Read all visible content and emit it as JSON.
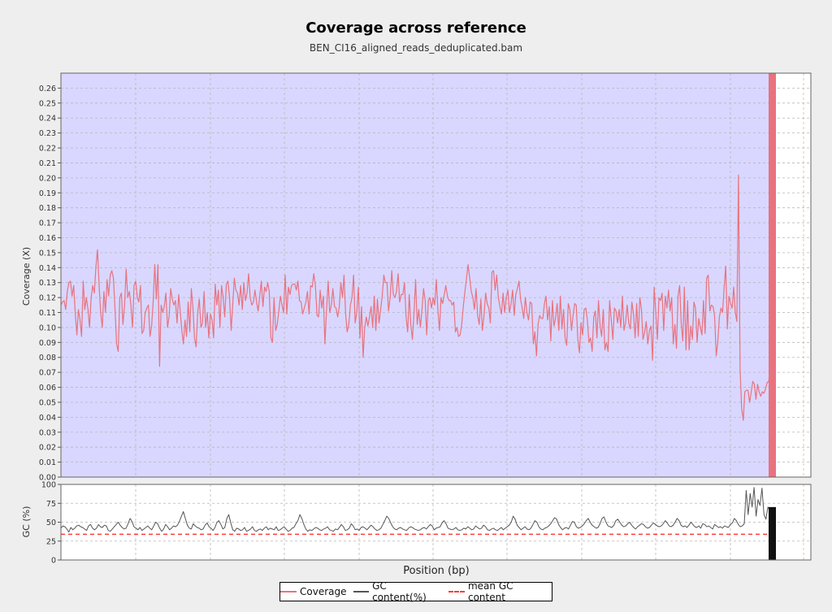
{
  "title": "Coverage across reference",
  "subtitle": "BEN_CI16_aligned_reads_deduplicated.bam",
  "colors": {
    "background": "#eeeeee",
    "plot_bg": "#d9d7ff",
    "coverage_line": "#e8737f",
    "gc_line": "#555555",
    "mean_gc": "#ff3b3b",
    "grid": "#b7b7b7",
    "grid_vertical": "#e8b27f"
  },
  "chart_data": [
    {
      "type": "line",
      "title": "Coverage across reference",
      "xlabel": "",
      "ylabel": "Coverage (X)",
      "ylim": [
        0,
        0.27
      ],
      "yticks": [
        "0.00",
        "0.01",
        "0.02",
        "0.03",
        "0.04",
        "0.05",
        "0.06",
        "0.07",
        "0.08",
        "0.09",
        "0.10",
        "0.11",
        "0.12",
        "0.13",
        "0.14",
        "0.15",
        "0.16",
        "0.17",
        "0.18",
        "0.19",
        "0.20",
        "0.21",
        "0.22",
        "0.23",
        "0.24",
        "0.25",
        "0.26"
      ],
      "grid": true,
      "series": [
        {
          "name": "Coverage",
          "color": "#e8737f",
          "values": [
            0.115,
            0.117,
            0.118,
            0.112,
            0.124,
            0.13,
            0.131,
            0.121,
            0.128,
            0.11,
            0.095,
            0.112,
            0.105,
            0.094,
            0.131,
            0.112,
            0.12,
            0.112,
            0.1,
            0.12,
            0.128,
            0.123,
            0.141,
            0.152,
            0.128,
            0.11,
            0.1,
            0.124,
            0.11,
            0.132,
            0.121,
            0.135,
            0.138,
            0.133,
            0.112,
            0.089,
            0.084,
            0.12,
            0.123,
            0.102,
            0.115,
            0.139,
            0.12,
            0.124,
            0.115,
            0.1,
            0.128,
            0.131,
            0.12,
            0.117,
            0.128,
            0.096,
            0.098,
            0.11,
            0.113,
            0.115,
            0.094,
            0.101,
            0.117,
            0.142,
            0.119,
            0.142,
            0.074,
            0.115,
            0.11,
            0.114,
            0.123,
            0.1,
            0.107,
            0.126,
            0.119,
            0.115,
            0.118,
            0.103,
            0.122,
            0.111,
            0.098,
            0.089,
            0.105,
            0.094,
            0.117,
            0.097,
            0.126,
            0.113,
            0.093,
            0.087,
            0.11,
            0.119,
            0.1,
            0.103,
            0.124,
            0.1,
            0.11,
            0.093,
            0.109,
            0.105,
            0.093,
            0.129,
            0.115,
            0.125,
            0.1,
            0.128,
            0.12,
            0.107,
            0.129,
            0.131,
            0.12,
            0.098,
            0.115,
            0.133,
            0.125,
            0.123,
            0.115,
            0.128,
            0.112,
            0.13,
            0.118,
            0.123,
            0.136,
            0.12,
            0.115,
            0.117,
            0.125,
            0.117,
            0.111,
            0.121,
            0.131,
            0.114,
            0.127,
            0.124,
            0.13,
            0.124,
            0.093,
            0.09,
            0.12,
            0.098,
            0.102,
            0.111,
            0.121,
            0.115,
            0.11,
            0.135,
            0.109,
            0.127,
            0.122,
            0.128,
            0.129,
            0.129,
            0.125,
            0.131,
            0.118,
            0.117,
            0.109,
            0.113,
            0.117,
            0.124,
            0.109,
            0.128,
            0.127,
            0.136,
            0.128,
            0.108,
            0.107,
            0.125,
            0.113,
            0.121,
            0.089,
            0.112,
            0.131,
            0.11,
            0.115,
            0.126,
            0.114,
            0.113,
            0.107,
            0.114,
            0.13,
            0.12,
            0.135,
            0.109,
            0.097,
            0.102,
            0.115,
            0.12,
            0.135,
            0.103,
            0.11,
            0.127,
            0.093,
            0.114,
            0.08,
            0.1,
            0.107,
            0.101,
            0.107,
            0.114,
            0.1,
            0.121,
            0.098,
            0.119,
            0.103,
            0.112,
            0.121,
            0.135,
            0.13,
            0.13,
            0.111,
            0.12,
            0.138,
            0.122,
            0.12,
            0.124,
            0.136,
            0.117,
            0.122,
            0.122,
            0.13,
            0.107,
            0.097,
            0.122,
            0.102,
            0.092,
            0.11,
            0.132,
            0.102,
            0.112,
            0.1,
            0.112,
            0.126,
            0.118,
            0.095,
            0.118,
            0.12,
            0.113,
            0.12,
            0.115,
            0.132,
            0.112,
            0.098,
            0.12,
            0.116,
            0.122,
            0.128,
            0.121,
            0.118,
            0.118,
            0.115,
            0.117,
            0.097,
            0.1,
            0.094,
            0.095,
            0.102,
            0.114,
            0.124,
            0.133,
            0.142,
            0.133,
            0.124,
            0.12,
            0.112,
            0.126,
            0.108,
            0.102,
            0.119,
            0.098,
            0.108,
            0.123,
            0.116,
            0.113,
            0.103,
            0.137,
            0.138,
            0.125,
            0.135,
            0.12,
            0.114,
            0.109,
            0.123,
            0.11,
            0.12,
            0.125,
            0.11,
            0.116,
            0.125,
            0.108,
            0.122,
            0.126,
            0.131,
            0.119,
            0.113,
            0.106,
            0.12,
            0.11,
            0.105,
            0.117,
            0.116,
            0.089,
            0.097,
            0.081,
            0.102,
            0.108,
            0.106,
            0.106,
            0.116,
            0.121,
            0.105,
            0.114,
            0.091,
            0.118,
            0.101,
            0.106,
            0.116,
            0.098,
            0.121,
            0.099,
            0.112,
            0.093,
            0.088,
            0.116,
            0.112,
            0.098,
            0.108,
            0.116,
            0.115,
            0.092,
            0.083,
            0.103,
            0.095,
            0.112,
            0.113,
            0.105,
            0.09,
            0.093,
            0.084,
            0.107,
            0.111,
            0.093,
            0.118,
            0.101,
            0.094,
            0.112,
            0.085,
            0.09,
            0.084,
            0.118,
            0.105,
            0.092,
            0.113,
            0.111,
            0.103,
            0.112,
            0.1,
            0.121,
            0.098,
            0.103,
            0.115,
            0.103,
            0.099,
            0.117,
            0.109,
            0.093,
            0.116,
            0.094,
            0.12,
            0.112,
            0.092,
            0.097,
            0.104,
            0.089,
            0.098,
            0.101,
            0.078,
            0.127,
            0.11,
            0.092,
            0.12,
            0.118,
            0.123,
            0.098,
            0.121,
            0.113,
            0.125,
            0.111,
            0.12,
            0.089,
            0.102,
            0.086,
            0.121,
            0.128,
            0.103,
            0.091,
            0.127,
            0.085,
            0.118,
            0.085,
            0.101,
            0.092,
            0.117,
            0.113,
            0.09,
            0.106,
            0.1,
            0.095,
            0.118,
            0.096,
            0.133,
            0.135,
            0.111,
            0.115,
            0.114,
            0.108,
            0.081,
            0.09,
            0.107,
            0.113,
            0.11,
            0.127,
            0.141,
            0.099,
            0.121,
            0.116,
            0.113,
            0.127,
            0.11,
            0.104,
            0.202,
            0.072,
            0.046,
            0.038,
            0.057,
            0.058,
            0.058,
            0.05,
            0.057,
            0.064,
            0.062,
            0.052,
            0.062,
            0.057,
            0.054,
            0.057,
            0.056,
            0.059,
            0.063,
            0.064,
            0.075,
            0.088
          ]
        }
      ]
    },
    {
      "type": "line",
      "xlabel": "Position (bp)",
      "ylabel": "GC (%)",
      "ylim": [
        0,
        100
      ],
      "yticks": [
        "0",
        "25",
        "50",
        "75",
        "100"
      ],
      "grid": true,
      "mean_gc": 34,
      "series": [
        {
          "name": "GC content(%)",
          "color": "#555555",
          "values": [
            42,
            45,
            44,
            41,
            37,
            43,
            40,
            42,
            45,
            46,
            44,
            43,
            41,
            39,
            45,
            47,
            42,
            40,
            42,
            47,
            44,
            43,
            46,
            45,
            39,
            38,
            41,
            44,
            47,
            50,
            46,
            43,
            41,
            42,
            48,
            55,
            51,
            44,
            42,
            40,
            43,
            39,
            41,
            43,
            45,
            42,
            40,
            45,
            50,
            48,
            42,
            38,
            41,
            47,
            44,
            40,
            42,
            45,
            44,
            46,
            51,
            58,
            64,
            55,
            46,
            42,
            41,
            48,
            45,
            43,
            42,
            40,
            41,
            46,
            49,
            44,
            42,
            39,
            43,
            50,
            52,
            47,
            41,
            43,
            55,
            60,
            49,
            40,
            38,
            42,
            41,
            39,
            40,
            43,
            38,
            39,
            41,
            44,
            39,
            38,
            40,
            41,
            39,
            42,
            44,
            40,
            42,
            41,
            40,
            44,
            39,
            40,
            42,
            44,
            41,
            38,
            39,
            42,
            43,
            48,
            52,
            60,
            55,
            47,
            41,
            38,
            40,
            39,
            41,
            43,
            42,
            40,
            39,
            41,
            42,
            44,
            40,
            39,
            38,
            41,
            40,
            43,
            47,
            44,
            39,
            40,
            42,
            48,
            45,
            40,
            41,
            39,
            43,
            44,
            42,
            40,
            43,
            46,
            44,
            41,
            39,
            40,
            42,
            47,
            52,
            58,
            55,
            49,
            44,
            41,
            40,
            42,
            43,
            41,
            40,
            39,
            42,
            44,
            43,
            41,
            40,
            39,
            40,
            42,
            43,
            41,
            44,
            47,
            45,
            40,
            42,
            43,
            44,
            49,
            52,
            48,
            42,
            41,
            40,
            41,
            43,
            40,
            39,
            40,
            42,
            41,
            44,
            42,
            40,
            41,
            45,
            43,
            41,
            42,
            46,
            44,
            40,
            39,
            41,
            42,
            40,
            39,
            41,
            43,
            40,
            42,
            44,
            46,
            50,
            58,
            54,
            46,
            43,
            40,
            42,
            44,
            41,
            40,
            42,
            47,
            52,
            50,
            44,
            41,
            40,
            42,
            43,
            45,
            48,
            52,
            56,
            54,
            47,
            43,
            40,
            42,
            43,
            41,
            46,
            51,
            50,
            44,
            42,
            43,
            45,
            48,
            52,
            55,
            50,
            46,
            44,
            42,
            43,
            48,
            55,
            57,
            50,
            45,
            44,
            43,
            46,
            52,
            54,
            50,
            46,
            44,
            45,
            48,
            50,
            46,
            43,
            41,
            44,
            46,
            48,
            47,
            44,
            42,
            43,
            46,
            49,
            47,
            45,
            44,
            45,
            48,
            52,
            49,
            45,
            44,
            46,
            50,
            55,
            52,
            46,
            44,
            45,
            43,
            46,
            50,
            47,
            44,
            43,
            45,
            42,
            48,
            47,
            44,
            45,
            43,
            41,
            47,
            45,
            43,
            44,
            42,
            45,
            44,
            43,
            47,
            49,
            55,
            52,
            47,
            44,
            45,
            48,
            92,
            60,
            88,
            70,
            96,
            58,
            80,
            72,
            95,
            60,
            54,
            70,
            65,
            48
          ]
        }
      ]
    }
  ],
  "legend": {
    "coverage": "Coverage",
    "gc": "GC content(%)",
    "mean_gc": "mean GC content"
  }
}
